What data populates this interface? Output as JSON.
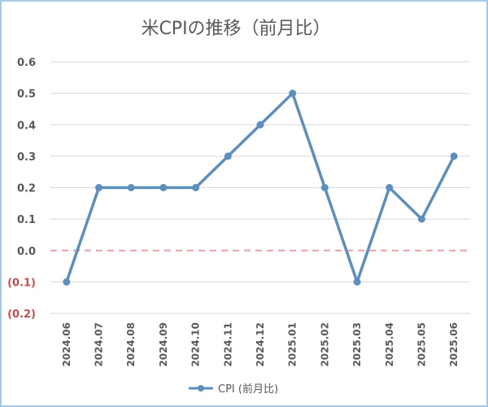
{
  "chart_data": {
    "type": "line",
    "title": "米CPIの推移（前月比）",
    "categories": [
      "2024.06",
      "2024.07",
      "2024.08",
      "2024.09",
      "2024.10",
      "2024.11",
      "2024.12",
      "2025.01",
      "2025.02",
      "2025.03",
      "2025.04",
      "2025.05",
      "2025.06"
    ],
    "series": [
      {
        "name": "CPI (前月比)",
        "values": [
          -0.1,
          0.2,
          0.2,
          0.2,
          0.2,
          0.3,
          0.4,
          0.5,
          0.2,
          -0.1,
          0.2,
          0.1,
          0.3
        ],
        "color": "#5b8fbe"
      }
    ],
    "ylim": [
      -0.2,
      0.6
    ],
    "yticks": [
      0.6,
      0.5,
      0.4,
      0.3,
      0.2,
      0.1,
      0.0,
      -0.1,
      -0.2
    ],
    "ytick_labels": [
      "0.6",
      "0.5",
      "0.4",
      "0.3",
      "0.2",
      "0.1",
      "0.0",
      "(0.1)",
      "(0.2)"
    ],
    "reference_line": {
      "value": 0.0,
      "style": "dashed",
      "color": "#e6a0a8"
    },
    "negative_label_color": "#c0504d",
    "grid": true,
    "legend": "bottom"
  }
}
